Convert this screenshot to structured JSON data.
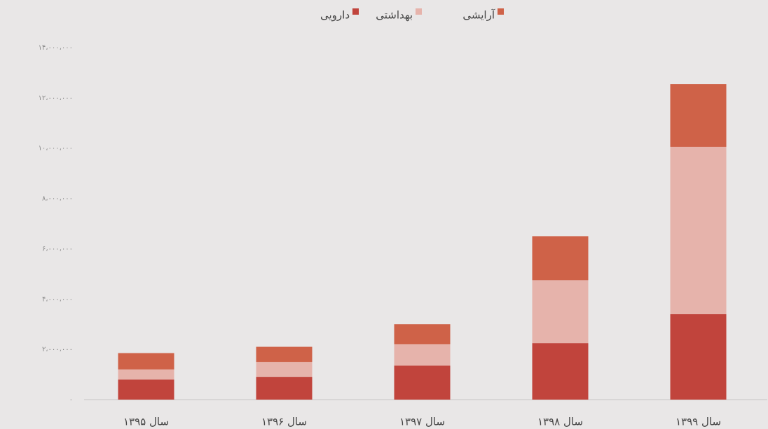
{
  "chart_data": {
    "type": "bar",
    "stacked": true,
    "categories": [
      "سال ۱۳۹۵",
      "سال ۱۳۹۶",
      "سال ۱۳۹۷",
      "سال ۱۳۹۸",
      "سال ۱۳۹۹"
    ],
    "series": [
      {
        "name": "دارویی",
        "color": "#c1443c",
        "values": [
          800000,
          900000,
          1350000,
          2250000,
          3400000
        ]
      },
      {
        "name": "بهداشتی",
        "color": "#e6b3ab",
        "values": [
          400000,
          600000,
          850000,
          2500000,
          6650000
        ]
      },
      {
        "name": "آرایشی",
        "color": "#cf6248",
        "values": [
          650000,
          600000,
          800000,
          1750000,
          2500000
        ]
      }
    ],
    "ylim": [
      0,
      14000000
    ],
    "yticks": [
      {
        "value": 0,
        "label": "۰"
      },
      {
        "value": 2000000,
        "label": "۲،۰۰۰،۰۰۰"
      },
      {
        "value": 4000000,
        "label": "۴،۰۰۰،۰۰۰"
      },
      {
        "value": 6000000,
        "label": "۶،۰۰۰،۰۰۰"
      },
      {
        "value": 8000000,
        "label": "۸،۰۰۰،۰۰۰"
      },
      {
        "value": 10000000,
        "label": "۱۰،۰۰۰،۰۰۰"
      },
      {
        "value": 12000000,
        "label": "۱۲،۰۰۰،۰۰۰"
      },
      {
        "value": 14000000,
        "label": "۱۴،۰۰۰،۰۰۰"
      }
    ],
    "grid": false,
    "legend": "top"
  }
}
